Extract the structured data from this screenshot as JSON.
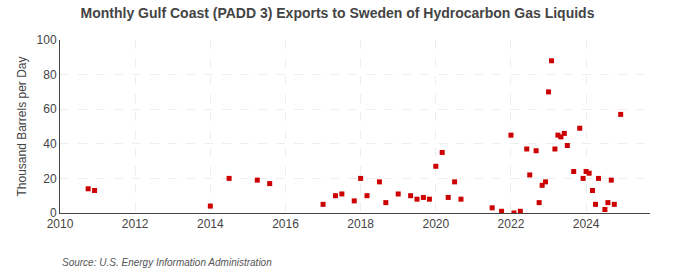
{
  "chart_data": {
    "type": "scatter",
    "title": "Monthly Gulf Coast (PADD 3) Exports to Sweden of Hydrocarbon Gas Liquids",
    "ylabel": "Thousand Barrels per Day",
    "annotations": [
      "Source: U.S. Energy Information Administration"
    ],
    "x": [
      2010.75,
      2010.92,
      2014.0,
      2014.5,
      2015.25,
      2015.58,
      2017.0,
      2017.33,
      2017.5,
      2017.83,
      2018.0,
      2018.17,
      2018.5,
      2018.67,
      2019.0,
      2019.33,
      2019.5,
      2019.67,
      2019.83,
      2020.0,
      2020.17,
      2020.33,
      2020.5,
      2020.67,
      2021.5,
      2021.75,
      2022.0,
      2022.08,
      2022.25,
      2022.42,
      2022.5,
      2022.67,
      2022.75,
      2022.83,
      2022.92,
      2023.0,
      2023.08,
      2023.17,
      2023.25,
      2023.33,
      2023.42,
      2023.5,
      2023.67,
      2023.83,
      2023.92,
      2024.0,
      2024.08,
      2024.17,
      2024.25,
      2024.33,
      2024.5,
      2024.58,
      2024.67,
      2024.75,
      2024.92
    ],
    "values": [
      14,
      13,
      4,
      20,
      19,
      17,
      5,
      10,
      11,
      7,
      20,
      10,
      18,
      6,
      11,
      10,
      8,
      9,
      8,
      27,
      35,
      9,
      18,
      8,
      3,
      1,
      45,
      0,
      1,
      37,
      22,
      36,
      6,
      16,
      18,
      70,
      88,
      37,
      45,
      44,
      46,
      39,
      24,
      49,
      20,
      24,
      23,
      13,
      5,
      20,
      2,
      6,
      19,
      5,
      57
    ],
    "color": "#cc0000",
    "marker": "square",
    "xlim": [
      2010,
      2025.7
    ],
    "xticks": [
      2010,
      2012,
      2014,
      2016,
      2018,
      2020,
      2022,
      2024
    ],
    "ylim": [
      0,
      100
    ],
    "yticks": [
      0,
      20,
      40,
      60,
      80,
      100
    ],
    "grid": true
  }
}
